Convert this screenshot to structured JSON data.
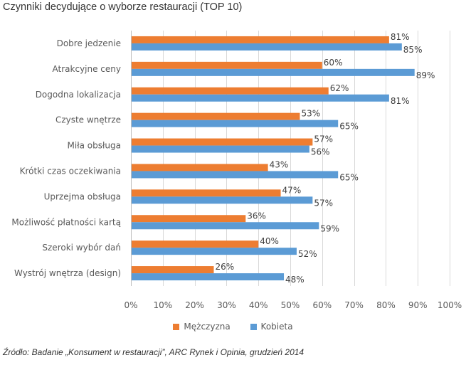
{
  "chart_data": {
    "type": "bar",
    "orientation": "horizontal",
    "title": "Czynniki decydujące o wyborze restauracji (TOP 10)",
    "categories": [
      "Dobre jedzenie",
      "Atrakcyjne ceny",
      "Dogodna lokalizacja",
      "Czyste wnętrze",
      "Miła obsługa",
      "Krótki czas oczekiwania",
      "Uprzejma obsługa",
      "Możliwość płatności kartą",
      "Szeroki wybór dań",
      "Wystrój wnętrza (design)"
    ],
    "series": [
      {
        "name": "Mężczyzna",
        "color": "#ED7D31",
        "values": [
          81,
          60,
          62,
          53,
          57,
          43,
          47,
          36,
          40,
          26
        ]
      },
      {
        "name": "Kobieta",
        "color": "#5B9BD5",
        "values": [
          85,
          89,
          81,
          65,
          56,
          65,
          57,
          59,
          52,
          48
        ]
      }
    ],
    "xlim": [
      0,
      100
    ],
    "xticks": [
      0,
      10,
      20,
      30,
      40,
      50,
      60,
      70,
      80,
      90,
      100
    ],
    "tick_suffix": "%",
    "value_suffix": "%",
    "legend_position": "bottom",
    "grid": true
  },
  "source": "Źródło: Badanie „Konsument w restauracji”, ARC Rynek i Opinia, grudzień 2014",
  "colors": {
    "grid": "#D9D9D9",
    "axis": "#BFBFBF"
  }
}
